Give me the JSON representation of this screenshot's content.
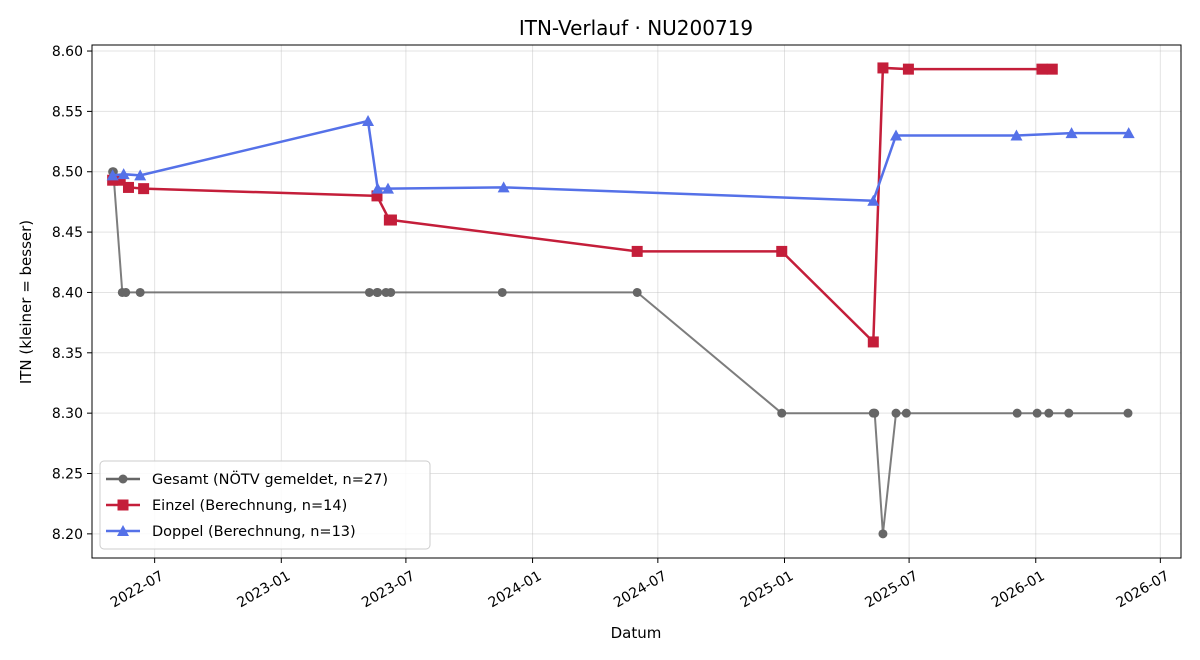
{
  "chart_data": {
    "type": "line",
    "title": "ITN-Verlauf · NU200719",
    "xlabel": "Datum",
    "ylabel": "ITN  (kleiner = besser)",
    "x_ticks": [
      "2022-07",
      "2023-01",
      "2023-07",
      "2024-01",
      "2024-07",
      "2025-01",
      "2025-07",
      "2026-01",
      "2026-07"
    ],
    "y_ticks": [
      "8.20",
      "8.25",
      "8.30",
      "8.35",
      "8.40",
      "8.45",
      "8.50",
      "8.55",
      "8.60"
    ],
    "xlim": [
      "2022-04-01",
      "2026-07-31"
    ],
    "ylim": [
      8.18,
      8.605
    ],
    "grid": true,
    "legend_position": "lower-left",
    "series": [
      {
        "name": "Gesamt (NÖTV gemeldet, n=27)",
        "color": "#666666",
        "marker": "circle",
        "points": [
          [
            "2022-05-01",
            8.5
          ],
          [
            "2022-05-02",
            8.5
          ],
          [
            "2022-05-15",
            8.4
          ],
          [
            "2022-05-20",
            8.4
          ],
          [
            "2022-06-10",
            8.4
          ],
          [
            "2023-05-09",
            8.4
          ],
          [
            "2023-05-20",
            8.4
          ],
          [
            "2023-05-21",
            8.4
          ],
          [
            "2023-06-02",
            8.4
          ],
          [
            "2023-06-09",
            8.4
          ],
          [
            "2023-11-18",
            8.4
          ],
          [
            "2024-06-01",
            8.4
          ],
          [
            "2024-12-28",
            8.3
          ],
          [
            "2025-05-10",
            8.3
          ],
          [
            "2025-05-12",
            8.3
          ],
          [
            "2025-05-24",
            8.2
          ],
          [
            "2025-06-12",
            8.3
          ],
          [
            "2025-06-27",
            8.3
          ],
          [
            "2025-12-05",
            8.3
          ],
          [
            "2026-01-03",
            8.3
          ],
          [
            "2026-01-20",
            8.3
          ],
          [
            "2026-02-18",
            8.3
          ],
          [
            "2026-05-15",
            8.3
          ]
        ]
      },
      {
        "name": "Einzel (Berechnung, n=14)",
        "color": "#c41e3a",
        "marker": "square",
        "points": [
          [
            "2022-05-01",
            8.493
          ],
          [
            "2022-05-12",
            8.493
          ],
          [
            "2022-05-24",
            8.487
          ],
          [
            "2022-06-15",
            8.486
          ],
          [
            "2023-05-20",
            8.48
          ],
          [
            "2023-06-07",
            8.46
          ],
          [
            "2023-06-10",
            8.46
          ],
          [
            "2024-06-01",
            8.434
          ],
          [
            "2024-12-28",
            8.434
          ],
          [
            "2025-05-10",
            8.359
          ],
          [
            "2025-05-24",
            8.586
          ],
          [
            "2025-06-30",
            8.585
          ],
          [
            "2026-01-10",
            8.585
          ],
          [
            "2026-01-25",
            8.585
          ]
        ]
      },
      {
        "name": "Doppel (Berechnung, n=13)",
        "color": "#5571e8",
        "marker": "triangle",
        "points": [
          [
            "2022-05-01",
            8.497
          ],
          [
            "2022-05-17",
            8.498
          ],
          [
            "2022-06-10",
            8.497
          ],
          [
            "2023-05-07",
            8.542
          ],
          [
            "2023-05-21",
            8.486
          ],
          [
            "2023-06-05",
            8.486
          ],
          [
            "2023-11-20",
            8.487
          ],
          [
            "2025-05-10",
            8.476
          ],
          [
            "2025-06-12",
            8.53
          ],
          [
            "2025-12-04",
            8.53
          ],
          [
            "2026-02-22",
            8.532
          ],
          [
            "2026-05-16",
            8.532
          ]
        ]
      }
    ]
  }
}
